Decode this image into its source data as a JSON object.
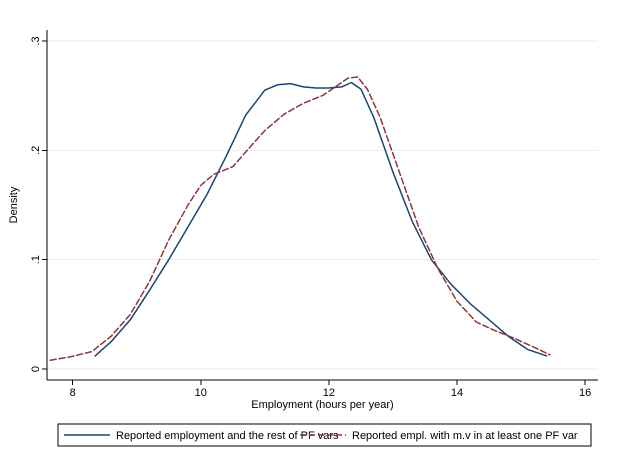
{
  "chart_data": {
    "type": "line",
    "title": "",
    "xlabel": "Employment (hours per year)",
    "ylabel": "Density",
    "xlim": [
      7.6,
      16.2
    ],
    "ylim": [
      -0.01,
      0.31
    ],
    "x_ticks": [
      8,
      10,
      12,
      14,
      16
    ],
    "x_tick_labels": [
      "8",
      "10",
      "12",
      "14",
      "16"
    ],
    "y_ticks": [
      0,
      0.1,
      0.2,
      0.3
    ],
    "y_tick_labels": [
      "0",
      ".1",
      ".2",
      ".3"
    ],
    "grid": "horizontal",
    "legend_position": "bottom",
    "series": [
      {
        "name": "Reported employment and the rest of PF vars",
        "color": "#1a476f",
        "dash": "solid",
        "x": [
          8.35,
          8.6,
          8.9,
          9.2,
          9.5,
          9.8,
          10.1,
          10.4,
          10.7,
          11.0,
          11.2,
          11.4,
          11.6,
          11.8,
          12.0,
          12.2,
          12.35,
          12.5,
          12.7,
          13.0,
          13.3,
          13.6,
          13.9,
          14.2,
          14.5,
          14.8,
          15.1,
          15.4
        ],
        "y": [
          0.012,
          0.025,
          0.045,
          0.072,
          0.1,
          0.13,
          0.16,
          0.195,
          0.232,
          0.255,
          0.26,
          0.261,
          0.258,
          0.257,
          0.257,
          0.258,
          0.262,
          0.256,
          0.23,
          0.18,
          0.135,
          0.1,
          0.078,
          0.06,
          0.045,
          0.03,
          0.018,
          0.012
        ]
      },
      {
        "name": "Reported empl. with m.v in at least one PF var",
        "color": "#90353b",
        "dash": "dashed",
        "x": [
          7.65,
          7.95,
          8.3,
          8.6,
          8.9,
          9.2,
          9.5,
          9.8,
          10.0,
          10.2,
          10.5,
          10.8,
          11.0,
          11.3,
          11.6,
          11.9,
          12.1,
          12.3,
          12.45,
          12.6,
          12.8,
          13.1,
          13.4,
          13.7,
          14.0,
          14.3,
          14.6,
          14.9,
          15.2,
          15.45
        ],
        "y": [
          0.008,
          0.011,
          0.016,
          0.03,
          0.05,
          0.08,
          0.118,
          0.15,
          0.168,
          0.178,
          0.185,
          0.205,
          0.218,
          0.233,
          0.243,
          0.25,
          0.258,
          0.266,
          0.267,
          0.256,
          0.23,
          0.18,
          0.13,
          0.092,
          0.062,
          0.043,
          0.035,
          0.028,
          0.02,
          0.013
        ]
      }
    ]
  }
}
